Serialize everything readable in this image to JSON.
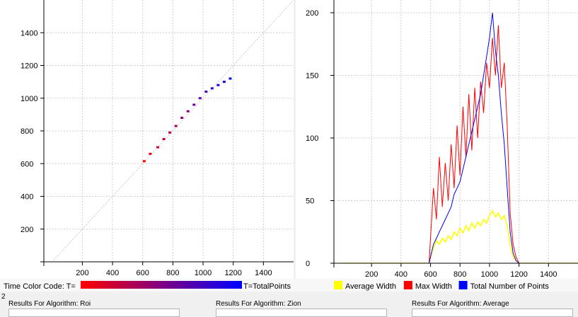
{
  "chart_data": [
    {
      "type": "scatter",
      "title": "",
      "xlabel": "",
      "ylabel": "",
      "xlim": [
        -55,
        1600
      ],
      "ylim": [
        0,
        1600
      ],
      "x_ticks": [
        "200",
        "400",
        "600",
        "800",
        "1000",
        "1200",
        "1400"
      ],
      "y_ticks": [
        "200",
        "400",
        "600",
        "800",
        "1000",
        "1200",
        "1400"
      ],
      "grid": true,
      "reference_line": "y = x",
      "series": [
        {
          "color_scale": [
            "#ff0000",
            "#0000ff"
          ],
          "points_x": [
            610,
            650,
            700,
            740,
            780,
            820,
            860,
            900,
            940,
            980,
            1020,
            1060,
            1100,
            1140,
            1180
          ],
          "points_y": [
            615,
            660,
            700,
            750,
            790,
            830,
            880,
            920,
            960,
            1000,
            1040,
            1060,
            1080,
            1100,
            1120
          ]
        }
      ]
    },
    {
      "type": "line",
      "title": "",
      "xlabel": "",
      "ylabel": "",
      "xlim": [
        -55,
        1600
      ],
      "ylim": [
        0,
        200
      ],
      "x_ticks": [
        "200",
        "400",
        "600",
        "800",
        "1000",
        "1200",
        "1400"
      ],
      "y_ticks": [
        "0",
        "50",
        "100",
        "150",
        "200"
      ],
      "grid": true,
      "legend": "bottom",
      "x": [
        0,
        590,
        600,
        620,
        640,
        660,
        680,
        700,
        720,
        740,
        760,
        780,
        800,
        820,
        840,
        860,
        880,
        900,
        920,
        940,
        960,
        980,
        1000,
        1020,
        1040,
        1060,
        1080,
        1100,
        1120,
        1140,
        1160,
        1180,
        1200,
        1600
      ],
      "series": [
        {
          "name": "Average Width",
          "color": "#ffff00",
          "values": [
            0,
            0,
            5,
            12,
            18,
            15,
            20,
            17,
            22,
            19,
            25,
            22,
            28,
            24,
            30,
            26,
            32,
            28,
            33,
            30,
            35,
            32,
            38,
            42,
            37,
            40,
            35,
            38,
            30,
            15,
            5,
            2,
            0,
            0
          ]
        },
        {
          "name": "Max Width",
          "color": "#ff0000",
          "values": [
            0,
            0,
            20,
            60,
            35,
            85,
            45,
            80,
            50,
            95,
            60,
            110,
            70,
            125,
            85,
            135,
            90,
            140,
            100,
            145,
            120,
            160,
            140,
            180,
            150,
            190,
            140,
            160,
            110,
            40,
            15,
            5,
            0,
            0
          ]
        },
        {
          "name": "Total Number of Points",
          "color": "#0000ff",
          "values": [
            0,
            0,
            5,
            15,
            20,
            25,
            30,
            35,
            40,
            45,
            55,
            60,
            65,
            75,
            85,
            95,
            105,
            115,
            125,
            135,
            150,
            165,
            180,
            200,
            170,
            150,
            120,
            95,
            60,
            25,
            8,
            2,
            0,
            0
          ]
        }
      ]
    }
  ],
  "color_legend": {
    "label": "Time Color Code: T=",
    "end_label": "T=TotalPoints",
    "start_color": "#ff0000",
    "end_color": "#0000ff"
  },
  "corner_number": "2",
  "results": [
    {
      "title": "Results For Algorithm: Roi"
    },
    {
      "title": "Results For Algorithm: Zion"
    },
    {
      "title": "Results For Algorithm: Average"
    }
  ]
}
